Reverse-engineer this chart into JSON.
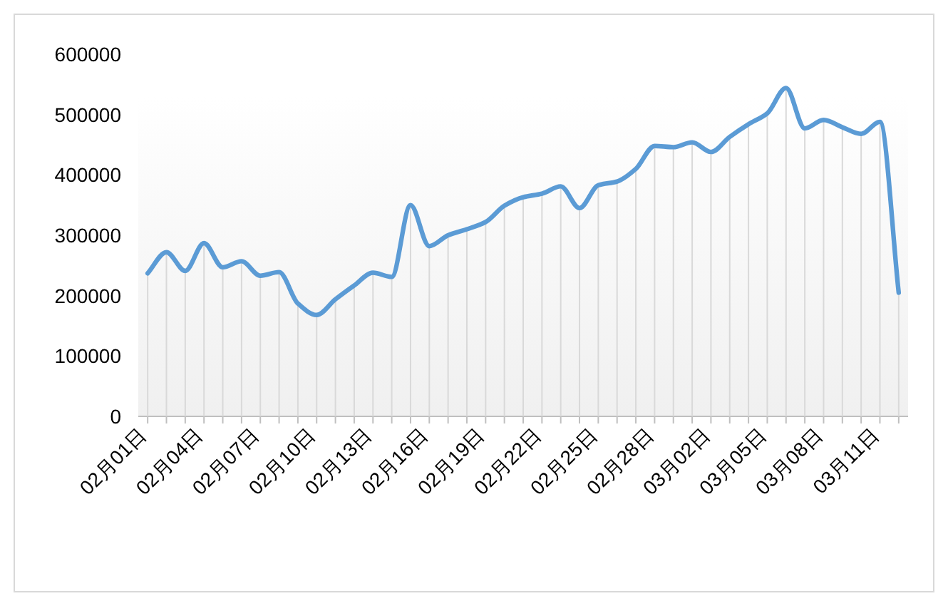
{
  "chart_data": {
    "type": "line",
    "categories": [
      "02月01日",
      null,
      null,
      "02月04日",
      null,
      null,
      "02月07日",
      null,
      null,
      "02月10日",
      null,
      null,
      "02月13日",
      null,
      null,
      "02月16日",
      null,
      null,
      "02月19日",
      null,
      null,
      "02月22日",
      null,
      null,
      "02月25日",
      null,
      null,
      "02月28日",
      null,
      null,
      "03月02日",
      null,
      null,
      "03月05日",
      null,
      null,
      "03月08日",
      null,
      null,
      "03月11日",
      null
    ],
    "series": [
      {
        "type": "bar",
        "color": "#d9d9d9",
        "values": [
          237000,
          272000,
          241000,
          287000,
          247000,
          257000,
          233000,
          239000,
          187000,
          168000,
          194000,
          217000,
          238000,
          231000,
          350000,
          282000,
          300000,
          310000,
          322000,
          349000,
          363000,
          369000,
          381000,
          345000,
          383000,
          389000,
          410000,
          448000,
          446000,
          454000,
          438000,
          463000,
          484000,
          502000,
          544000,
          477000,
          491000,
          479000,
          468000,
          488000,
          205000
        ]
      },
      {
        "color": "#5b9bd5",
        "values": [
          237000,
          272000,
          241000,
          287000,
          247000,
          257000,
          233000,
          239000,
          187000,
          168000,
          194000,
          217000,
          238000,
          231000,
          350000,
          282000,
          300000,
          310000,
          322000,
          349000,
          363000,
          369000,
          381000,
          345000,
          383000,
          389000,
          410000,
          448000,
          446000,
          454000,
          438000,
          463000,
          484000,
          502000,
          544000,
          477000,
          491000,
          479000,
          468000,
          488000,
          205000
        ]
      }
    ],
    "ylim": [
      0,
      600000
    ],
    "yticks": [
      0,
      100000,
      200000,
      300000,
      400000,
      500000,
      600000
    ],
    "grid": false,
    "marker": "none",
    "line_style": "solid"
  }
}
